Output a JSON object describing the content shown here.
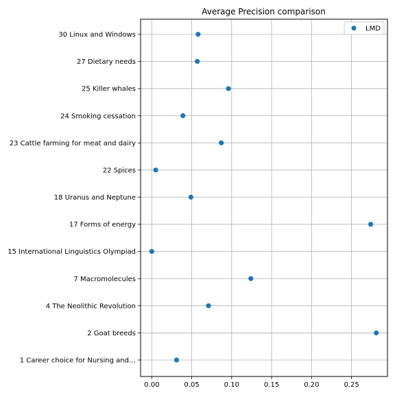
{
  "chart_data": {
    "type": "scatter",
    "title": "Average Precision comparison",
    "xlabel": "",
    "ylabel": "",
    "xlim": [
      -0.014,
      0.295
    ],
    "xticks": [
      "0.00",
      "0.05",
      "0.10",
      "0.15",
      "0.20",
      "0.25"
    ],
    "xtick_values": [
      0.0,
      0.05,
      0.1,
      0.15,
      0.2,
      0.25
    ],
    "grid": true,
    "legend_position": "top-right",
    "categories": [
      "30 Linux and Windows",
      "27 Dietary needs",
      "25 Killer whales",
      "24 Smoking cessation",
      "23 Cattle farming for meat and dairy",
      "22 Spices",
      "18 Uranus and Neptune",
      "17 Forms of energy",
      "15 International Linguistics Olympiad",
      "7 Macromolecules",
      "4 The Neolithic Revolution",
      "2 Goat breeds",
      "1 Career choice for Nursing and…"
    ],
    "series": [
      {
        "name": "LMD",
        "color": "#1f77b4",
        "values": [
          0.058,
          0.057,
          0.096,
          0.039,
          0.087,
          0.005,
          0.049,
          0.274,
          0.0,
          0.124,
          0.071,
          0.281,
          0.031
        ]
      }
    ]
  }
}
